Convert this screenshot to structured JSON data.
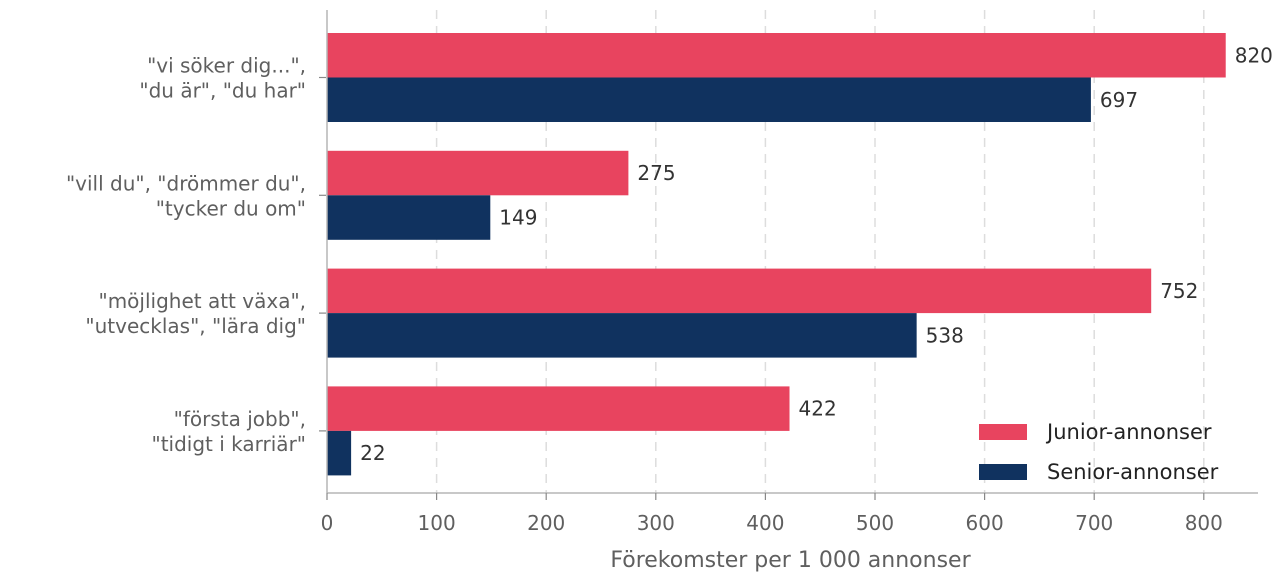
{
  "chart_data": {
    "type": "bar",
    "orientation": "horizontal",
    "categories": [
      [
        "\"vi söker dig...\",",
        "\"du är\", \"du har\""
      ],
      [
        "\"vill du\", \"drömmer du\",",
        "\"tycker du om\""
      ],
      [
        "\"möjlighet att växa\",",
        "\"utvecklas\", \"lära dig\""
      ],
      [
        "\"första jobb\",",
        "\"tidigt i karriär\""
      ]
    ],
    "series": [
      {
        "name": "Junior-annonser",
        "color": "#e8445f",
        "values": [
          820,
          275,
          752,
          422
        ]
      },
      {
        "name": "Senior-annonser",
        "color": "#10325f",
        "values": [
          697,
          149,
          538,
          22
        ]
      }
    ],
    "xlabel": "Förekomster per 1 000 annonser",
    "xlim": [
      0,
      850
    ],
    "xticks": [
      0,
      100,
      200,
      300,
      400,
      500,
      600,
      700,
      800
    ],
    "grid": "vertical-dashed",
    "legend_position": "lower-right"
  }
}
